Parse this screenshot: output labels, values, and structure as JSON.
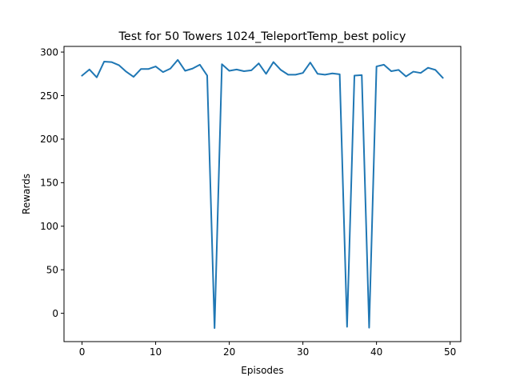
{
  "chart_data": {
    "type": "line",
    "title": "Test for 50 Towers 1024_TeleportTemp_best policy",
    "xlabel": "Episodes",
    "ylabel": "Rewards",
    "xlim": [
      -2.45,
      51.45
    ],
    "ylim": [
      -32.5,
      306.5
    ],
    "xticks": [
      0,
      10,
      20,
      30,
      40,
      50
    ],
    "yticks": [
      0,
      50,
      100,
      150,
      200,
      250,
      300
    ],
    "grid": false,
    "legend": "none",
    "series_color": "#1f77b4",
    "x": [
      0,
      1,
      2,
      3,
      4,
      5,
      6,
      7,
      8,
      9,
      10,
      11,
      12,
      13,
      14,
      15,
      16,
      17,
      18,
      19,
      20,
      21,
      22,
      23,
      24,
      25,
      26,
      27,
      28,
      29,
      30,
      31,
      32,
      33,
      34,
      35,
      36,
      37,
      38,
      39,
      40,
      41,
      42,
      43,
      44,
      45,
      46,
      47,
      48,
      49
    ],
    "values": [
      273,
      280,
      271,
      289,
      288.5,
      285,
      277.5,
      271.5,
      280.5,
      280.5,
      283.5,
      277,
      281,
      291,
      278.5,
      281,
      285.5,
      273,
      -17,
      286,
      278.5,
      280,
      278,
      279,
      287,
      275,
      288.5,
      279.5,
      274,
      274,
      276,
      288,
      275,
      274,
      275.5,
      274.5,
      -15.5,
      273,
      273.5,
      -16.5,
      283.5,
      285.5,
      278,
      279.5,
      272,
      277.5,
      276,
      282,
      279.5,
      270.5
    ]
  }
}
